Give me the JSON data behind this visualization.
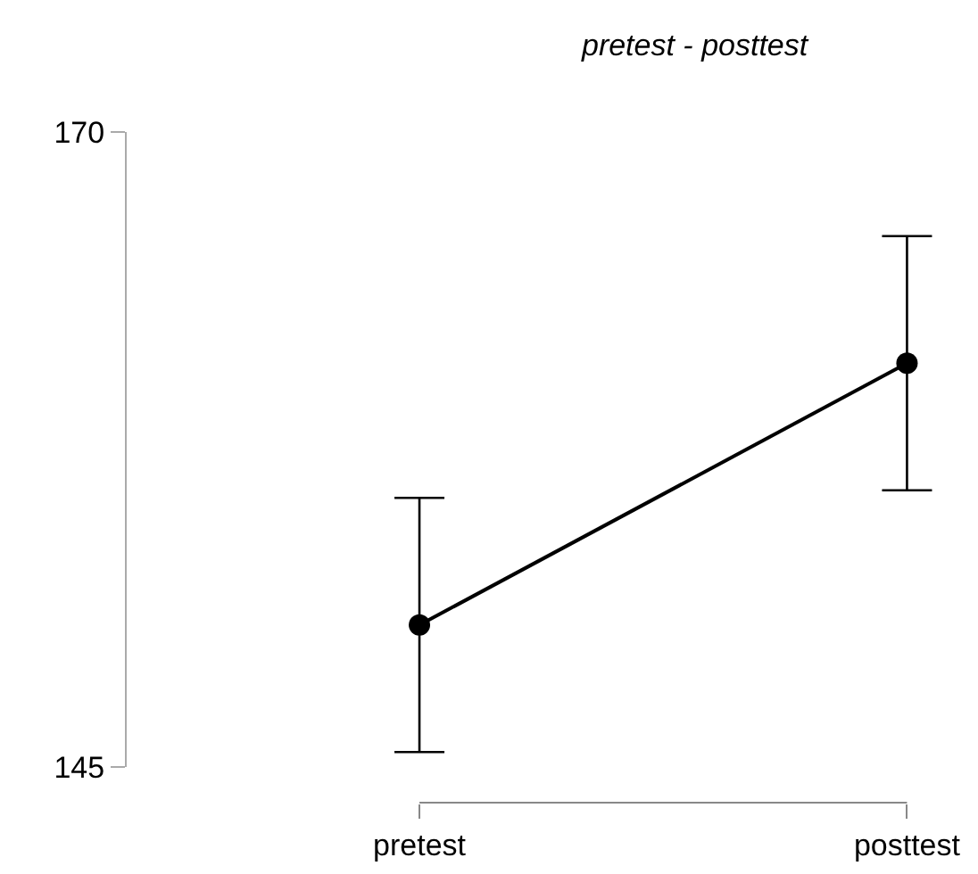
{
  "chart_data": {
    "type": "line",
    "title": "pretest - posttest",
    "categories": [
      "pretest",
      "posttest"
    ],
    "values": [
      150.6,
      160.9
    ],
    "errors": [
      5,
      5
    ],
    "color": "#000000",
    "marker": "circle",
    "line_style": "solid",
    "ylim": [
      145,
      170
    ],
    "yticks": [
      145,
      170
    ],
    "grid": false,
    "legend": false
  }
}
